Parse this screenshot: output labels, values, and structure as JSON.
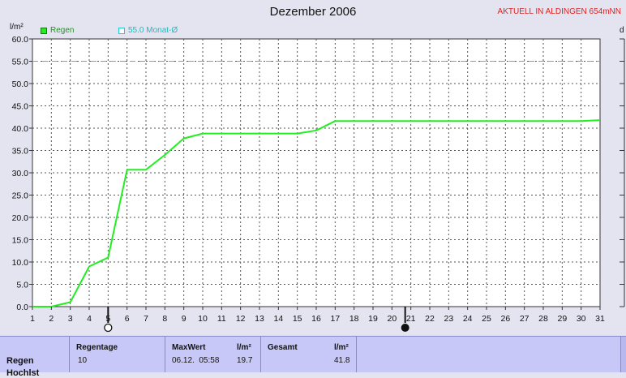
{
  "page": {
    "title": "Dezember 2006",
    "location": "AKTUELL IN ALDINGEN 654mNN",
    "right_edge_label": "d"
  },
  "chart_data": {
    "type": "line",
    "title": "Dezember 2006",
    "ylabel": "l/m²",
    "xlabel": "",
    "xlim": [
      1,
      31
    ],
    "ylim": [
      0,
      60
    ],
    "x_ticks": [
      1,
      2,
      3,
      4,
      5,
      6,
      7,
      8,
      9,
      10,
      11,
      12,
      13,
      14,
      15,
      16,
      17,
      18,
      19,
      20,
      21,
      22,
      23,
      24,
      25,
      26,
      27,
      28,
      29,
      30,
      31
    ],
    "y_ticks": [
      "0.0",
      "5.0",
      "10.0",
      "15.0",
      "20.0",
      "25.0",
      "30.0",
      "35.0",
      "40.0",
      "45.0",
      "50.0",
      "55.0",
      "60.0"
    ],
    "grid": true,
    "legend_position": "top-left",
    "series": [
      {
        "name": "Regen",
        "color": "#22ee22",
        "points": [
          [
            1,
            0
          ],
          [
            2,
            0
          ],
          [
            3,
            1
          ],
          [
            4,
            9
          ],
          [
            5,
            11
          ],
          [
            6,
            30.7
          ],
          [
            7,
            30.7
          ],
          [
            8,
            34
          ],
          [
            9,
            37.7
          ],
          [
            10,
            38.8
          ],
          [
            11,
            38.8
          ],
          [
            12,
            38.8
          ],
          [
            13,
            38.8
          ],
          [
            14,
            38.8
          ],
          [
            15,
            38.8
          ],
          [
            16,
            39.5
          ],
          [
            17,
            41.6
          ],
          [
            18,
            41.6
          ],
          [
            19,
            41.6
          ],
          [
            20,
            41.6
          ],
          [
            21,
            41.6
          ],
          [
            22,
            41.6
          ],
          [
            23,
            41.6
          ],
          [
            24,
            41.6
          ],
          [
            25,
            41.6
          ],
          [
            26,
            41.6
          ],
          [
            27,
            41.6
          ],
          [
            28,
            41.6
          ],
          [
            29,
            41.6
          ],
          [
            30,
            41.6
          ],
          [
            31,
            41.8
          ]
        ]
      }
    ],
    "reference_lines": [
      {
        "name": "55.0 Monat-Ø",
        "value": 55,
        "color": "#22cccc"
      }
    ],
    "moon_markers": [
      {
        "x": 5,
        "phase": "full-moon"
      },
      {
        "x": 20.7,
        "phase": "new-moon"
      }
    ]
  },
  "stats": {
    "row_label": "Regen",
    "row_label_2": "Hochlst",
    "regentage_label": "Regentage",
    "regentage_value": "10",
    "maxwert_label": "MaxWert",
    "maxwert_unit": "l/m²",
    "maxwert_date": "06.12.  05:58",
    "maxwert_value": "19.7",
    "gesamt_label": "Gesamt",
    "gesamt_unit": "l/m²",
    "gesamt_value": "41.8"
  }
}
